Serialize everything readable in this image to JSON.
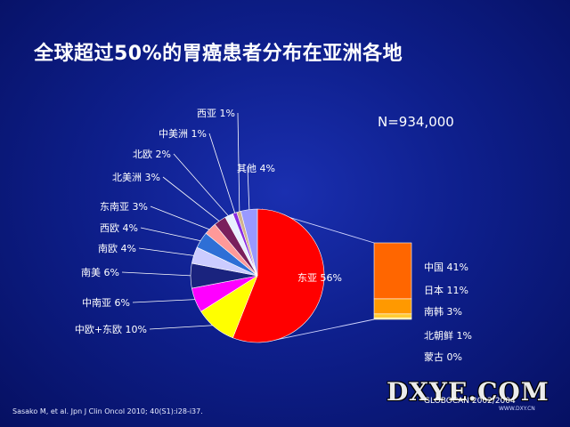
{
  "title": "全球超过50%的胃癌患者分布在亚洲各地",
  "total_label": "N=934,000",
  "reference": "Sasako M, et al. Jpn J Clin Oncol 2010; 40(S1):i28-i37.",
  "source": "GLOBOCAN 2002/2004",
  "watermark": "DXYE.COM",
  "watermark_sub": "WWW.DXY.CN",
  "chart_data": [
    {
      "type": "pie",
      "title": "",
      "slices": [
        {
          "name": "东亚",
          "label": "东亚 56%",
          "value": 56,
          "color": "#ff0000"
        },
        {
          "name": "中欧+东欧",
          "label": "中欧+东欧 10%",
          "value": 10,
          "color": "#ffff00"
        },
        {
          "name": "中南亚",
          "label": "中南亚 6%",
          "value": 6,
          "color": "#ff00ff"
        },
        {
          "name": "南美",
          "label": "南美 6%",
          "value": 6,
          "color": "#1a237e"
        },
        {
          "name": "南欧",
          "label": "南欧 4%",
          "value": 4,
          "color": "#ccccff"
        },
        {
          "name": "西欧",
          "label": "西欧 4%",
          "value": 4,
          "color": "#2e6fd6"
        },
        {
          "name": "东南亚",
          "label": "东南亚 3%",
          "value": 3,
          "color": "#ff9999"
        },
        {
          "name": "北美洲",
          "label": "北美洲 3%",
          "value": 3,
          "color": "#7a1f5c"
        },
        {
          "name": "北欧",
          "label": "北欧 2%",
          "value": 2,
          "color": "#e8f0ff"
        },
        {
          "name": "中美洲",
          "label": "中美洲 1%",
          "value": 1,
          "color": "#8a2be2"
        },
        {
          "name": "西亚",
          "label": "西亚 1%",
          "value": 1,
          "color": "#d2b48c"
        },
        {
          "name": "其他",
          "label": "其他 4%",
          "value": 4,
          "color": "#9999ff"
        }
      ]
    },
    {
      "type": "bar",
      "stacked": true,
      "title": "",
      "breakdown_of": "东亚",
      "segments": [
        {
          "name": "中国",
          "label": "中国 41%",
          "value": 41,
          "color": "#ff6600"
        },
        {
          "name": "日本",
          "label": "日本 11%",
          "value": 11,
          "color": "#ff9900"
        },
        {
          "name": "南韩",
          "label": "南韩 3%",
          "value": 3,
          "color": "#ffcc33"
        },
        {
          "name": "北朝鲜",
          "label": "北朝鲜 1%",
          "value": 1,
          "color": "#ffe680"
        },
        {
          "name": "蒙古",
          "label": "蒙古 0%",
          "value": 0,
          "color": "#fff2b3"
        }
      ]
    }
  ]
}
